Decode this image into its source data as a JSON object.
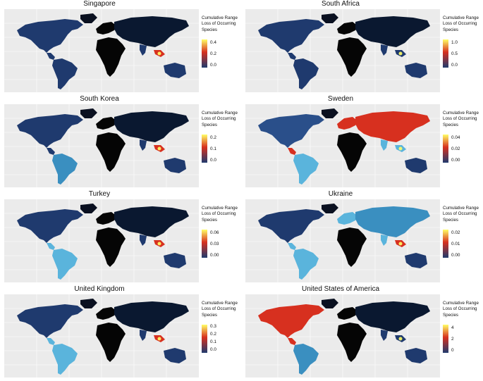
{
  "legend_title": "Cumulative Range Loss of Occurring Species",
  "legend_title_lines": [
    "Cumulative Range",
    "Loss of Occurring",
    "Species"
  ],
  "colors": {
    "background": "#ebebeb",
    "gridline": "#ffffff",
    "land_zero": "#050505",
    "low": "#1f3a6e",
    "mid_low": "#6ec6e6",
    "mid": "#d7301f",
    "high": "#ffff66"
  },
  "panels": [
    {
      "country": "Singapore",
      "legend_ticks": [
        "0.4",
        "0.2",
        "0.0"
      ],
      "scale": "low"
    },
    {
      "country": "South Africa",
      "legend_ticks": [
        "1.0",
        "0.5",
        "0.0"
      ],
      "scale": "low"
    },
    {
      "country": "South Korea",
      "legend_ticks": [
        "0.2",
        "0.1",
        "0.0"
      ],
      "scale": "low"
    },
    {
      "country": "Sweden",
      "legend_ticks": [
        "0.04",
        "0.02",
        "0.00"
      ],
      "scale": "mid"
    },
    {
      "country": "Turkey",
      "legend_ticks": [
        "0.06",
        "0.03",
        "0.00"
      ],
      "scale": "low"
    },
    {
      "country": "Ukraine",
      "legend_ticks": [
        "0.02",
        "0.01",
        "0.00"
      ],
      "scale": "mid"
    },
    {
      "country": "United Kingdom",
      "legend_ticks": [
        "0.3",
        "0.2",
        "0.1",
        "0.0"
      ],
      "scale": "mid"
    },
    {
      "country": "United States of America",
      "legend_ticks": [
        "4",
        "2",
        "0"
      ],
      "scale": "mid"
    }
  ]
}
